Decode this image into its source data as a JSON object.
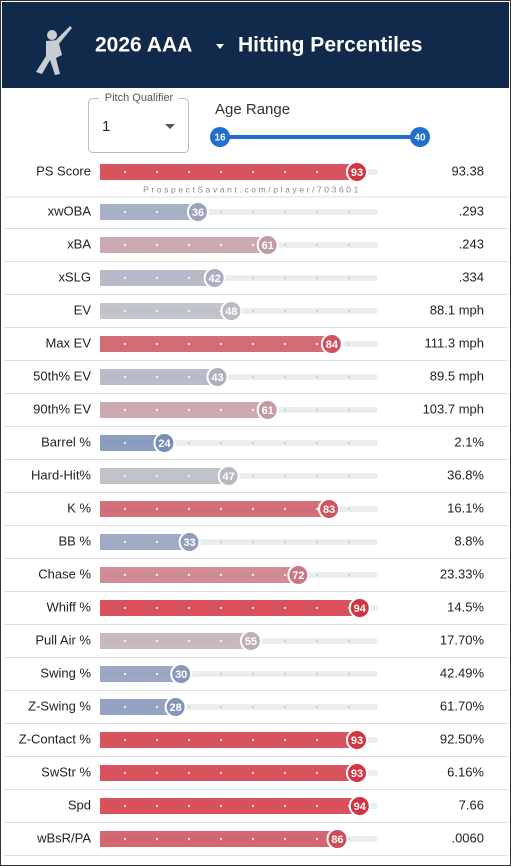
{
  "header": {
    "title": "2026 AAA",
    "subtitle": "Hitting Percentiles"
  },
  "controls": {
    "pitch_qualifier": {
      "label": "Pitch Qualifier",
      "value": "1"
    },
    "age_range": {
      "label": "Age Range",
      "min": "16",
      "max": "40"
    }
  },
  "watermark": "ProspectSavant.com/player/703601",
  "rows": [
    {
      "label": "PS Score",
      "percentile": 93,
      "value": "93.38"
    },
    {
      "label": "xwOBA",
      "percentile": 36,
      "value": ".293"
    },
    {
      "label": "xBA",
      "percentile": 61,
      "value": ".243"
    },
    {
      "label": "xSLG",
      "percentile": 42,
      "value": ".334"
    },
    {
      "label": "EV",
      "percentile": 48,
      "value": "88.1 mph"
    },
    {
      "label": "Max EV",
      "percentile": 84,
      "value": "111.3 mph"
    },
    {
      "label": "50th% EV",
      "percentile": 43,
      "value": "89.5 mph"
    },
    {
      "label": "90th% EV",
      "percentile": 61,
      "value": "103.7 mph"
    },
    {
      "label": "Barrel %",
      "percentile": 24,
      "value": "2.1%"
    },
    {
      "label": "Hard-Hit%",
      "percentile": 47,
      "value": "36.8%"
    },
    {
      "label": "K %",
      "percentile": 83,
      "value": "16.1%"
    },
    {
      "label": "BB %",
      "percentile": 33,
      "value": "8.8%"
    },
    {
      "label": "Chase %",
      "percentile": 72,
      "value": "23.33%"
    },
    {
      "label": "Whiff %",
      "percentile": 94,
      "value": "14.5%"
    },
    {
      "label": "Pull Air %",
      "percentile": 55,
      "value": "17.70%"
    },
    {
      "label": "Swing %",
      "percentile": 30,
      "value": "42.49%"
    },
    {
      "label": "Z-Swing %",
      "percentile": 28,
      "value": "61.70%"
    },
    {
      "label": "Z-Contact %",
      "percentile": 93,
      "value": "92.50%"
    },
    {
      "label": "SwStr %",
      "percentile": 93,
      "value": "6.16%"
    },
    {
      "label": "Spd",
      "percentile": 94,
      "value": "7.66"
    },
    {
      "label": "wBsR/PA",
      "percentile": 86,
      "value": ".0060"
    }
  ]
}
